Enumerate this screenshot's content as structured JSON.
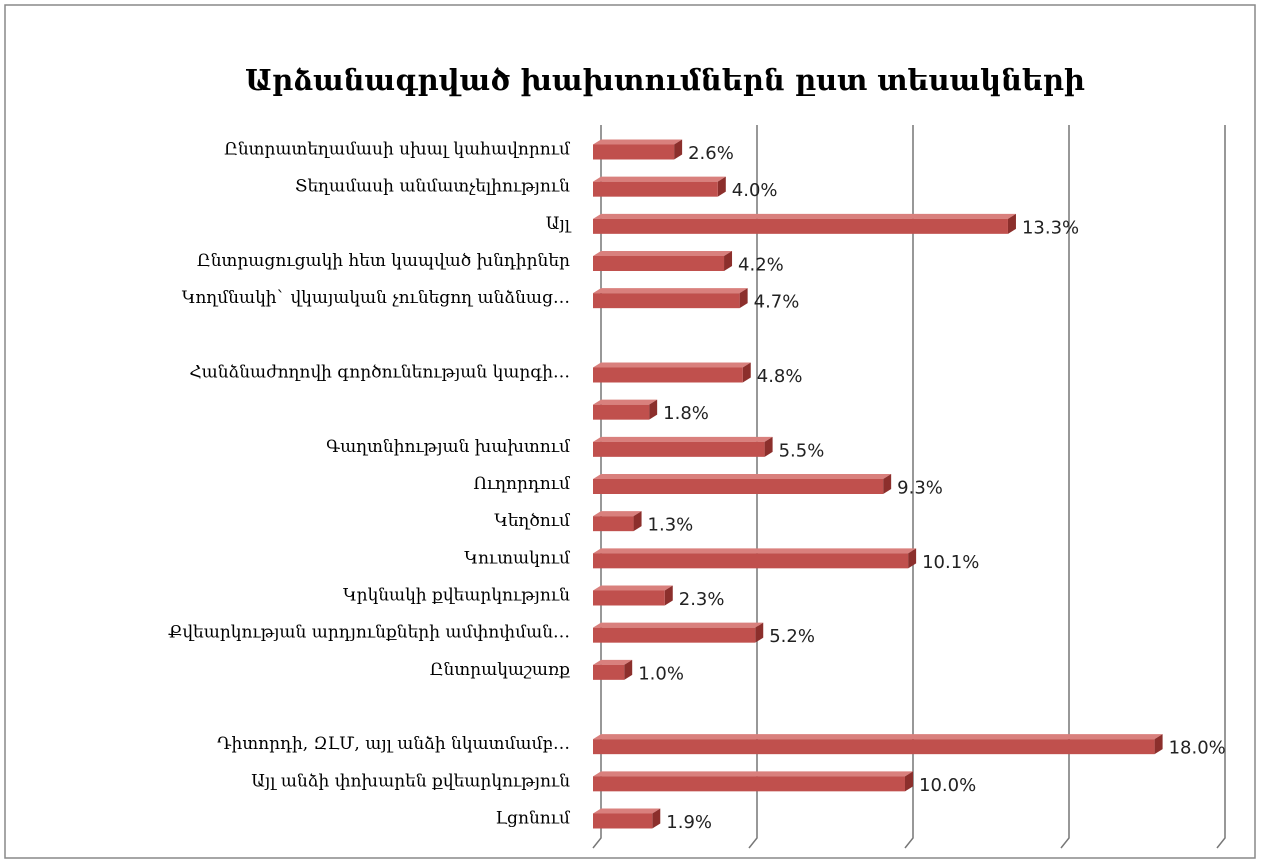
{
  "chart_data": {
    "type": "bar",
    "orientation": "horizontal",
    "title": "Արձանագրված խախտումներն ըստ տեսակների",
    "categories": [
      "Ընտրատեղամասի սխալ կահավորում",
      "Տեղամասի անմատչելիություն",
      "Այլ",
      "Ընտրացուցակի հետ կապված խնդիրներ",
      "Կողմնակի` վկայական չունեցող անձնաց…",
      null,
      "Հանձնաժողովի գործունեության կարգի…",
      null,
      "Գաղտնիության խախտում",
      "Ուղորդում",
      "Կեղծում",
      "Կուտակում",
      "Կրկնակի քվեարկություն",
      "Քվեարկության արդյունքների ամփոփման…",
      "Ընտրակաշառք",
      null,
      "Դիտորդի, ԶԼՄ, այլ անձի նկատմամբ…",
      "Այլ անձի փոխարեն քվեարկություն",
      "Լցոնում"
    ],
    "values": [
      2.6,
      4.0,
      13.3,
      4.2,
      4.7,
      null,
      4.8,
      1.8,
      5.5,
      9.3,
      1.3,
      10.1,
      2.3,
      5.2,
      1.0,
      null,
      18.0,
      10.0,
      1.9
    ],
    "value_labels": [
      "2.6%",
      "4.0%",
      "13.3%",
      "4.2%",
      "4.7%",
      null,
      "4.8%",
      "1.8%",
      "5.5%",
      "9.3%",
      "1.3%",
      "10.1%",
      "2.3%",
      "5.2%",
      "1.0%",
      null,
      "18.0%",
      "10.0%",
      "1.9%"
    ],
    "color": "#c0504d",
    "xlim": [
      0,
      20
    ],
    "xticks": [
      0,
      5,
      10,
      15,
      20
    ],
    "grid": true
  }
}
